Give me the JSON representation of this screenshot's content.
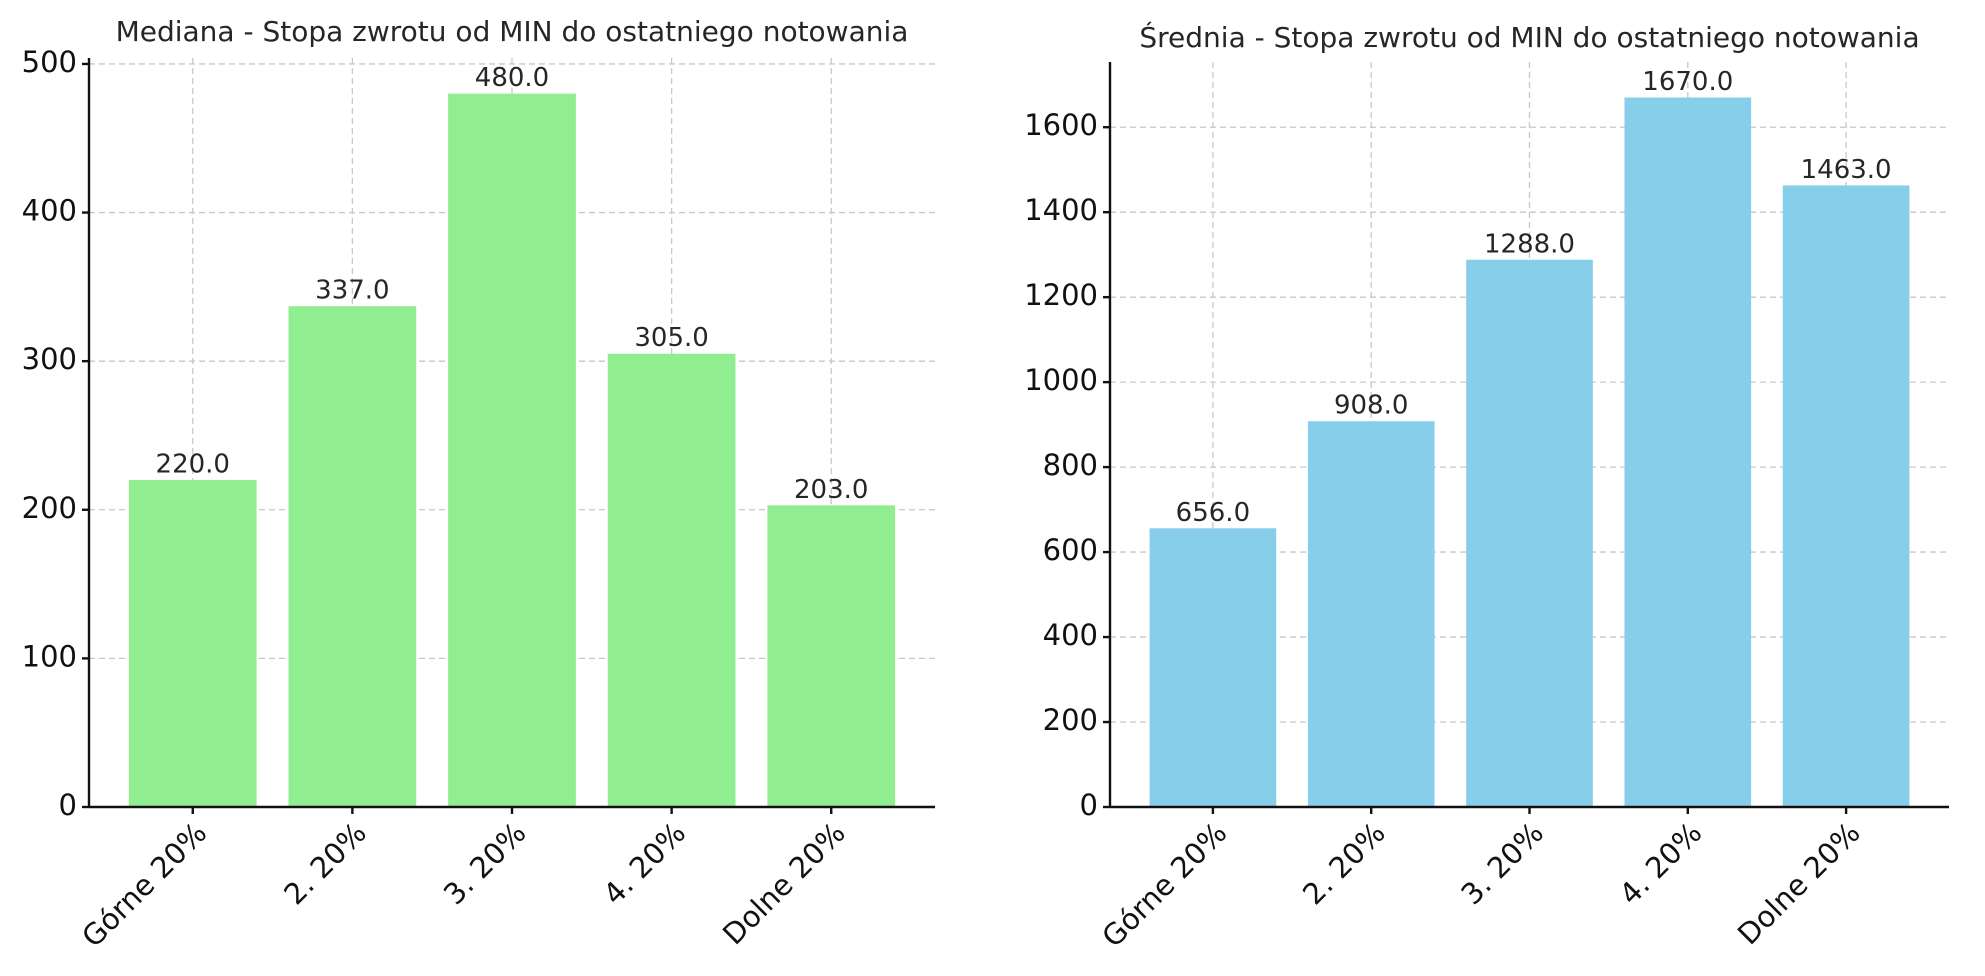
{
  "chart_data": [
    {
      "type": "bar",
      "title": "Mediana - Stopa zwrotu od MIN do ostatniego notowania",
      "categories": [
        "Górne 20%",
        "2. 20%",
        "3. 20%",
        "4. 20%",
        "Dolne 20%"
      ],
      "values": [
        220,
        337,
        480,
        305,
        203
      ],
      "value_labels": [
        "220.0",
        "337.0",
        "480.0",
        "305.0",
        "203.0"
      ],
      "color": "#90ee90",
      "ylim": [
        0,
        504
      ],
      "yticks": [
        0,
        100,
        200,
        300,
        400,
        500
      ],
      "grid": true
    },
    {
      "type": "bar",
      "title": "Średnia - Stopa zwrotu od MIN do ostatniego notowania",
      "categories": [
        "Górne 20%",
        "2. 20%",
        "3. 20%",
        "4. 20%",
        "Dolne 20%"
      ],
      "values": [
        656,
        908,
        1288,
        1670,
        1463
      ],
      "value_labels": [
        "656.0",
        "908.0",
        "1288.0",
        "1670.0",
        "1463.0"
      ],
      "color": "#87ceeb",
      "ylim": [
        0,
        1753.5
      ],
      "yticks": [
        0,
        200,
        400,
        600,
        800,
        1000,
        1200,
        1400,
        1600
      ],
      "grid": true
    }
  ]
}
